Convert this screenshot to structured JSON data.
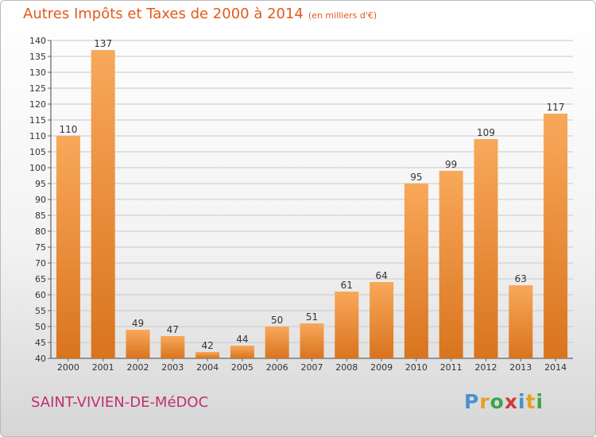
{
  "title": "Autres Impôts et Taxes de 2000 à 2014",
  "unit_label": "(en milliers d'€)",
  "commune": "SAINT-VIVIEN-DE-MéDOC",
  "logo": {
    "text": "Proxiti",
    "letter_colors": [
      "#4a90d0",
      "#e8a020",
      "#3aa64a",
      "#d03a3a",
      "#4a90d0",
      "#e8a020",
      "#3aa64a"
    ]
  },
  "colors": {
    "title": "#e25a1c",
    "commune": "#c03070",
    "bar_light": "#f8a85a",
    "bar_dark": "#d9741e",
    "grid": "#c8c8c8"
  },
  "chart_data": {
    "type": "bar",
    "categories": [
      "2000",
      "2001",
      "2002",
      "2003",
      "2004",
      "2005",
      "2006",
      "2007",
      "2008",
      "2009",
      "2010",
      "2011",
      "2012",
      "2013",
      "2014"
    ],
    "values": [
      110,
      137,
      49,
      47,
      42,
      44,
      50,
      51,
      61,
      64,
      95,
      99,
      109,
      63,
      117
    ],
    "ylim": [
      40,
      140
    ],
    "ytick_step": 5,
    "grid": true,
    "title": "Autres Impôts et Taxes de 2000 à 2014",
    "xlabel": "",
    "ylabel": ""
  }
}
